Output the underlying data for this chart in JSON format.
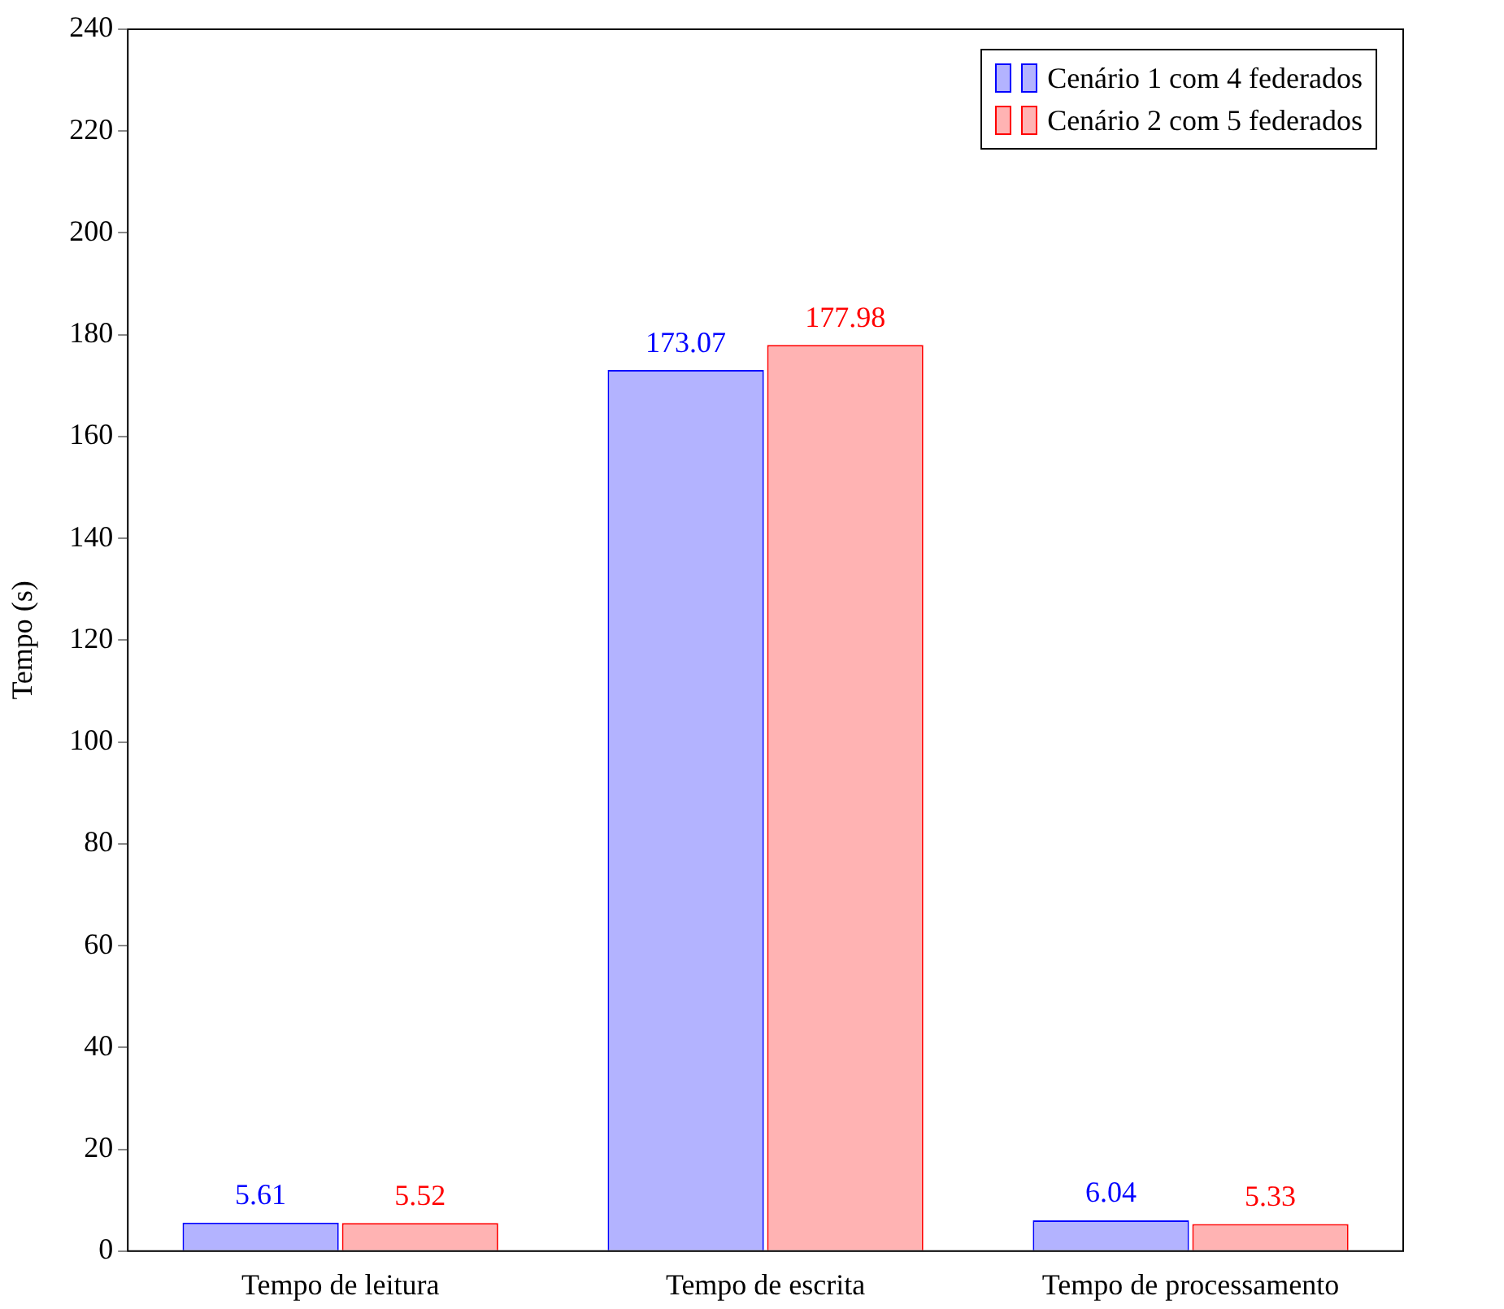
{
  "chart_data": {
    "type": "bar",
    "ylabel": "Tempo (s)",
    "categories": [
      "Tempo de leitura",
      "Tempo de escrita",
      "Tempo de processamento"
    ],
    "series": [
      {
        "name": "Cenário 1 com 4 federados",
        "color": "#b3b3ff",
        "values": [
          5.61,
          173.07,
          6.04
        ]
      },
      {
        "name": "Cenário 2 com 5 federados",
        "color": "#ffb3b3",
        "values": [
          5.52,
          177.98,
          5.33
        ]
      }
    ],
    "ylim": [
      0,
      240
    ],
    "yticks": [
      0,
      20,
      40,
      60,
      80,
      100,
      120,
      140,
      160,
      180,
      200,
      220,
      240
    ],
    "grid": false,
    "legend": "top right",
    "data_labels": true
  }
}
